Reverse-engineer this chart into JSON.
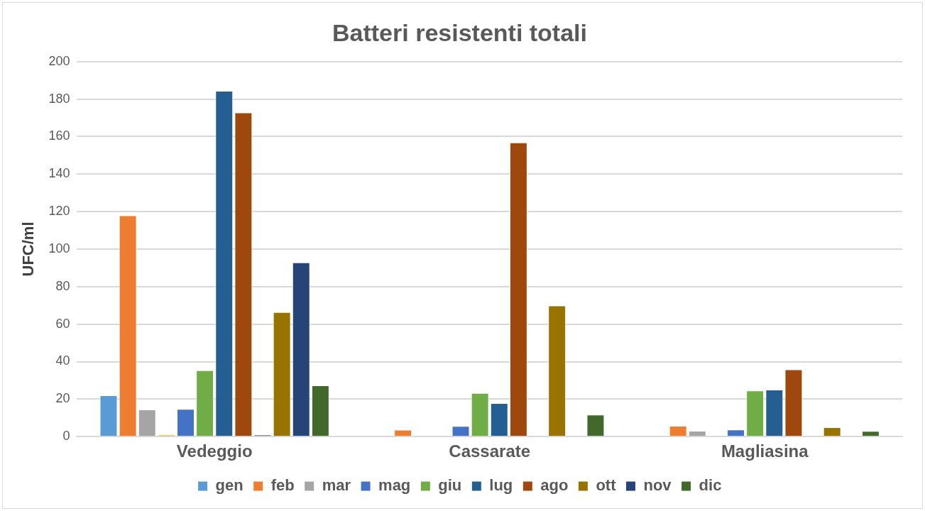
{
  "chart_data": {
    "type": "bar",
    "title": "Batteri resistenti totali",
    "ylabel": "UFC/ml",
    "categories": [
      "Vedeggio",
      "Cassarate",
      "Magliasina"
    ],
    "series": [
      {
        "name": "gen",
        "color": "#5b9bd5",
        "values": [
          22,
          0,
          0
        ]
      },
      {
        "name": "feb",
        "color": "#ed7d31",
        "values": [
          118,
          3.7,
          5.8
        ]
      },
      {
        "name": "mar",
        "color": "#a5a5a5",
        "values": [
          14.5,
          0,
          3.1
        ]
      },
      {
        "color": "#ffc000",
        "values": [
          1.1,
          0,
          0
        ]
      },
      {
        "name": "mag",
        "color": "#4472c4",
        "values": [
          14.7,
          5.7,
          3.8
        ]
      },
      {
        "name": "giu",
        "color": "#70ad47",
        "values": [
          35.4,
          23.3,
          24.6
        ]
      },
      {
        "name": "lug",
        "color": "#255e91",
        "values": [
          184.4,
          17.9,
          25.1
        ]
      },
      {
        "name": "ago",
        "color": "#9e480e",
        "values": [
          172.9,
          156.9,
          35.8
        ]
      },
      {
        "color": "#636363",
        "values": [
          1.1,
          0,
          0
        ]
      },
      {
        "name": "ott",
        "color": "#997300",
        "values": [
          66.4,
          69.9,
          5
        ]
      },
      {
        "name": "nov",
        "color": "#264478",
        "values": [
          92.9,
          0,
          0
        ]
      },
      {
        "name": "dic",
        "color": "#43682b",
        "values": [
          27.3,
          11.7,
          3
        ]
      }
    ],
    "ylim": [
      0,
      200
    ],
    "yticks": [
      0,
      20,
      40,
      60,
      80,
      100,
      120,
      140,
      160,
      180,
      200
    ],
    "grid": "y",
    "legend": "bottom"
  }
}
